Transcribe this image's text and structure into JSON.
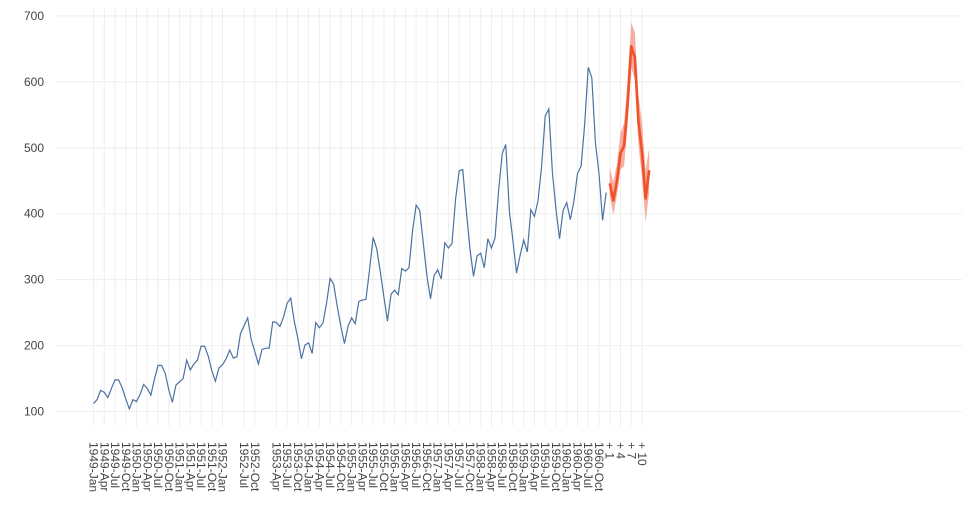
{
  "chart_data": {
    "type": "line",
    "title": "",
    "xlabel": "",
    "ylabel": "",
    "ylim": [
      78,
      712
    ],
    "yticks": [
      100,
      200,
      300,
      400,
      500,
      600,
      700
    ],
    "grid": true,
    "colors": {
      "history": "#4a72a3",
      "forecast": "#f0502a",
      "interval": "#f5a08f",
      "grid": "#eeeeee",
      "tick": "#444444"
    },
    "history": {
      "start": "1949-Jan",
      "values": [
        112,
        118,
        132,
        129,
        121,
        135,
        148,
        148,
        136,
        119,
        104,
        118,
        115,
        126,
        141,
        135,
        125,
        149,
        170,
        170,
        158,
        133,
        114,
        140,
        145,
        150,
        178,
        163,
        172,
        178,
        199,
        199,
        184,
        162,
        146,
        166,
        171,
        180,
        193,
        181,
        183,
        218,
        230,
        242,
        209,
        191,
        172,
        194,
        196,
        196,
        236,
        235,
        229,
        243,
        264,
        272,
        237,
        211,
        180,
        201,
        204,
        188,
        235,
        227,
        234,
        264,
        302,
        293,
        259,
        229,
        203,
        229,
        242,
        233,
        267,
        269,
        270,
        315,
        364,
        347,
        312,
        274,
        237,
        278,
        284,
        277,
        317,
        313,
        318,
        374,
        413,
        405,
        355,
        306,
        271,
        306,
        315,
        301,
        356,
        348,
        355,
        422,
        465,
        467,
        404,
        347,
        305,
        336,
        340,
        318,
        362,
        348,
        363,
        435,
        491,
        505,
        404,
        359,
        310,
        337,
        360,
        342,
        406,
        396,
        420,
        472,
        548,
        559,
        463,
        407,
        362,
        405,
        417,
        391,
        419,
        461,
        472,
        535,
        622,
        606,
        508,
        461,
        390,
        432
      ]
    },
    "forecast": {
      "values": [
        446,
        420,
        449,
        492,
        503,
        567,
        654,
        637,
        540,
        493,
        423,
        466
      ],
      "lower": [
        428,
        398,
        428,
        467,
        472,
        535,
        622,
        603,
        505,
        455,
        387,
        432
      ],
      "upper": [
        470,
        448,
        475,
        523,
        537,
        605,
        690,
        675,
        580,
        538,
        466,
        500
      ]
    },
    "x_tick_labels": [
      "1949-Jan",
      "1949-Apr",
      "1949-Jul",
      "1949-Oct",
      "1950-Jan",
      "1950-Apr",
      "1950-Jul",
      "1950-Oct",
      "1951-Jan",
      "1951-Apr",
      "1951-Jul",
      "1951-Oct",
      "1952-Jan",
      "1952-Jul",
      "1952-Oct",
      "1953-Apr",
      "1953-Jul",
      "1953-Oct",
      "1954-Jan",
      "1954-Apr",
      "1954-Jul",
      "1954-Oct",
      "1955-Jan",
      "1955-Apr",
      "1955-Jul",
      "1955-Oct",
      "1956-Jan",
      "1956-Apr",
      "1956-Jul",
      "1956-Oct",
      "1957-Jan",
      "1957-Apr",
      "1957-Jul",
      "1957-Oct",
      "1958-Jan",
      "1958-Apr",
      "1958-Jul",
      "1958-Oct",
      "1959-Jan",
      "1959-Apr",
      "1959-Jul",
      "1959-Oct",
      "1960-Jan",
      "1960-Apr",
      "1960-Jul",
      "1960-Oct",
      "+ 1",
      "+ 4",
      "+ 7",
      "+ 10"
    ]
  }
}
